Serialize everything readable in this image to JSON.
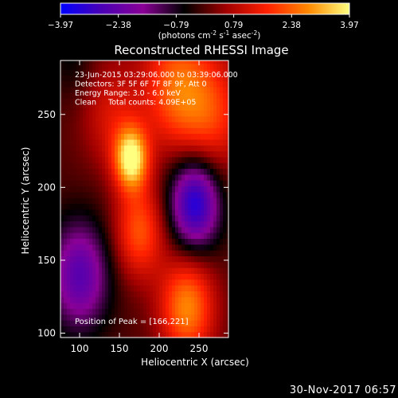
{
  "chart_data": {
    "type": "heatmap",
    "title": "Reconstructed RHESSI Image",
    "xlabel": "Heliocentric X (arcsec)",
    "ylabel": "Heliocentric Y (arcsec)",
    "xlim": [
      76,
      287
    ],
    "ylim": [
      97,
      287
    ],
    "x_ticks": [
      100,
      150,
      200,
      250
    ],
    "y_ticks": [
      100,
      150,
      200,
      250
    ],
    "colorbar": {
      "range": [
        -3.97,
        3.97
      ],
      "ticks": [
        -3.97,
        -2.38,
        -0.79,
        0.79,
        2.38,
        3.97
      ],
      "tick_labels": [
        "−3.97",
        "−2.38",
        "−0.79",
        "0.79",
        "2.38",
        "3.97"
      ],
      "label_parts": [
        "(photons cm",
        "-2",
        " s",
        "-1",
        " asec",
        "-2",
        ")"
      ],
      "colormap": [
        "#0000ff",
        "#4b00b4",
        "#8a0096",
        "#000000",
        "#a00000",
        "#ff2000",
        "#ff8800",
        "#ffff80"
      ]
    },
    "annotations": [
      "23-Jun-2015 03:29:06.000 to 03:39:06.000",
      "Detectors: 3F 5F 6F 7F 8F 9F, Att 0",
      "Energy Range: 3.0 - 6.0 keV",
      "Clean     Total counts: 4.09E+05"
    ],
    "peak_label": "Position of Peak = [166,221]",
    "peak": [
      166,
      221
    ],
    "sources": [
      {
        "x": 165,
        "y": 220,
        "amp": 3.9,
        "sigma": 15
      },
      {
        "x": 140,
        "y": 250,
        "amp": 1.2,
        "sigma": 26
      },
      {
        "x": 175,
        "y": 170,
        "amp": 2.2,
        "sigma": 22
      },
      {
        "x": 235,
        "y": 118,
        "amp": 2.8,
        "sigma": 24
      },
      {
        "x": 220,
        "y": 270,
        "amp": 2.2,
        "sigma": 30
      },
      {
        "x": 265,
        "y": 250,
        "amp": 1.8,
        "sigma": 30
      },
      {
        "x": 245,
        "y": 190,
        "amp": -3.6,
        "sigma": 22
      },
      {
        "x": 100,
        "y": 140,
        "amp": -2.6,
        "sigma": 26
      },
      {
        "x": 90,
        "y": 290,
        "amp": -0.6,
        "sigma": 20
      }
    ]
  },
  "footer_date": "30-Nov-2017 06:57"
}
